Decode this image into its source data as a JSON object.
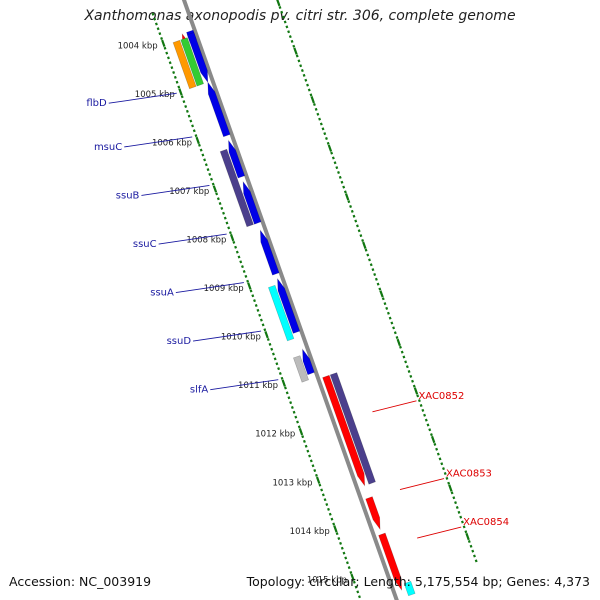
{
  "title": "Xanthomonas axonopodis pv. citri str. 306, complete genome",
  "footer": {
    "accession": "Accession: NC_003919",
    "topology": "Topology: circular; Length: 5,175,554 bp; Genes: 4,373"
  },
  "colors": {
    "backbone": "#8a8a8a",
    "tick": "#117711",
    "forward_gene": "#0000e6",
    "reverse_gene": "#ff0000",
    "purple_feature": "#4b3f8c",
    "cyan_feature": "#00ffff",
    "gray_feature": "#bbbbbb",
    "orange_feature": "#ff9900",
    "green_feature": "#33cc33",
    "left_label": "#1a1aa0",
    "right_label": "#dd0000"
  },
  "scale_marks": [
    "1004 kbp",
    "1005 kbp",
    "1006 kbp",
    "1007 kbp",
    "1008 kbp",
    "1009 kbp",
    "1010 kbp",
    "1011 kbp",
    "1012 kbp",
    "1013 kbp",
    "1014 kbp",
    "1015 kbp"
  ],
  "left_gene_labels": [
    {
      "name": "flbD",
      "kbp": 1005.0
    },
    {
      "name": "msuC",
      "kbp": 1005.9
    },
    {
      "name": "ssuB",
      "kbp": 1006.9
    },
    {
      "name": "ssuC",
      "kbp": 1007.9
    },
    {
      "name": "ssuA",
      "kbp": 1008.9
    },
    {
      "name": "ssuD",
      "kbp": 1009.9
    },
    {
      "name": "slfA",
      "kbp": 1010.9
    }
  ],
  "right_gene_labels": [
    {
      "name": "XAC0852",
      "kbp": 1012.1
    },
    {
      "name": "XAC0853",
      "kbp": 1013.7
    },
    {
      "name": "XAC0854",
      "kbp": 1014.7
    }
  ],
  "features": [
    {
      "track": "left2",
      "start_kbp": 1003.95,
      "end_kbp": 1004.15,
      "color": "#ff0000",
      "arrow": "start"
    },
    {
      "track": "left3",
      "start_kbp": 1003.95,
      "end_kbp": 1004.15,
      "color": "#0000e6",
      "arrow": "none"
    },
    {
      "track": "left1",
      "start_kbp": 1004.05,
      "end_kbp": 1005.0,
      "color": "#ff9900",
      "arrow": "none"
    },
    {
      "track": "left2",
      "start_kbp": 1004.05,
      "end_kbp": 1005.0,
      "color": "#33cc33",
      "arrow": "none"
    },
    {
      "track": "left3",
      "start_kbp": 1004.0,
      "end_kbp": 1005.0,
      "color": "#0000e6",
      "arrow": "end"
    },
    {
      "track": "left3",
      "start_kbp": 1005.0,
      "end_kbp": 1006.1,
      "color": "#0000e6",
      "arrow": "start"
    },
    {
      "track": "left2",
      "start_kbp": 1006.35,
      "end_kbp": 1007.9,
      "color": "#4b3f8c",
      "arrow": "none"
    },
    {
      "track": "left3",
      "start_kbp": 1006.2,
      "end_kbp": 1006.95,
      "color": "#0000e6",
      "arrow": "start"
    },
    {
      "track": "left3",
      "start_kbp": 1007.05,
      "end_kbp": 1007.9,
      "color": "#0000e6",
      "arrow": "start"
    },
    {
      "track": "left3",
      "start_kbp": 1008.05,
      "end_kbp": 1008.95,
      "color": "#0000e6",
      "arrow": "start"
    },
    {
      "track": "left2",
      "start_kbp": 1009.15,
      "end_kbp": 1010.25,
      "color": "#00ffff",
      "arrow": "none"
    },
    {
      "track": "left3",
      "start_kbp": 1009.05,
      "end_kbp": 1010.15,
      "color": "#0000e6",
      "arrow": "start"
    },
    {
      "track": "left2",
      "start_kbp": 1010.6,
      "end_kbp": 1011.1,
      "color": "#bbbbbb",
      "arrow": "none"
    },
    {
      "track": "left3",
      "start_kbp": 1010.5,
      "end_kbp": 1011.0,
      "color": "#0000e6",
      "arrow": "start"
    },
    {
      "track": "right1",
      "start_kbp": 1011.15,
      "end_kbp": 1013.4,
      "color": "#ff0000",
      "arrow": "end"
    },
    {
      "track": "right2",
      "start_kbp": 1011.15,
      "end_kbp": 1013.4,
      "color": "#4b3f8c",
      "arrow": "none"
    },
    {
      "track": "right1",
      "start_kbp": 1013.65,
      "end_kbp": 1014.3,
      "color": "#ff0000",
      "arrow": "end"
    },
    {
      "track": "right1",
      "start_kbp": 1014.4,
      "end_kbp": 1015.55,
      "color": "#ff0000",
      "arrow": "end"
    },
    {
      "track": "right2",
      "start_kbp": 1015.45,
      "end_kbp": 1015.7,
      "color": "#00ffff",
      "arrow": "none"
    }
  ]
}
